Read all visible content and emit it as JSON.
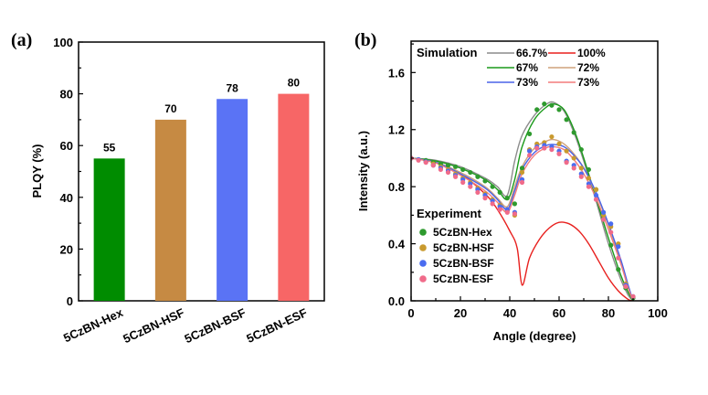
{
  "chart_data": [
    {
      "panel": "(a)",
      "type": "bar",
      "title": "",
      "xlabel": "",
      "ylabel": "PLQY (%)",
      "ylim": [
        0,
        100
      ],
      "yticks": [
        0,
        20,
        40,
        60,
        80,
        100
      ],
      "categories": [
        "5CzBN-Hex",
        "5CzBN-HSF",
        "5CzBN-BSF",
        "5CzBN-ESF"
      ],
      "values": [
        55,
        70,
        78,
        80
      ],
      "data_labels": [
        "55",
        "70",
        "78",
        "80"
      ],
      "colors": [
        "#008c00",
        "#c68a43",
        "#5a73f5",
        "#f76666"
      ],
      "grid": false
    },
    {
      "panel": "(b)",
      "type": "line",
      "title": "",
      "xlabel": "Angle (degree)",
      "ylabel": "Intensity (a.u.)",
      "xlim": [
        0,
        100
      ],
      "ylim": [
        0,
        1.82
      ],
      "xticks": [
        0,
        20,
        40,
        60,
        80,
        100
      ],
      "yticks": [
        0.0,
        0.4,
        0.8,
        1.2,
        1.6
      ],
      "ytick_labels": [
        "0.0",
        "0.4",
        "0.8",
        "1.2",
        "1.6"
      ],
      "grid": false,
      "legend_simulation_title": "Simulation",
      "legend_experiment_title": "Experiment",
      "simulation": [
        {
          "name": "66.7%",
          "color": "#8c8c8c",
          "x": [
            0,
            10,
            20,
            30,
            35,
            39,
            42,
            45,
            50,
            55,
            58,
            62,
            66,
            70,
            75,
            80,
            85,
            88,
            90
          ],
          "y": [
            1.0,
            0.985,
            0.94,
            0.86,
            0.8,
            0.74,
            0.98,
            1.16,
            1.3,
            1.38,
            1.39,
            1.33,
            1.18,
            0.98,
            0.7,
            0.4,
            0.15,
            0.04,
            0.0
          ]
        },
        {
          "name": "100%",
          "color": "#e8201e",
          "x": [
            0,
            10,
            20,
            30,
            35,
            40,
            43,
            45,
            48,
            52,
            56,
            60,
            64,
            68,
            72,
            76,
            80,
            84,
            88,
            90
          ],
          "y": [
            1.0,
            0.97,
            0.89,
            0.75,
            0.64,
            0.49,
            0.37,
            0.11,
            0.3,
            0.43,
            0.51,
            0.55,
            0.54,
            0.49,
            0.4,
            0.28,
            0.16,
            0.07,
            0.01,
            0.0
          ]
        },
        {
          "name": "67%",
          "color": "#1a9a1a",
          "x": [
            0,
            10,
            20,
            30,
            35,
            39,
            42,
            45,
            50,
            55,
            58,
            62,
            66,
            70,
            75,
            80,
            85,
            88,
            90
          ],
          "y": [
            1.0,
            0.98,
            0.93,
            0.85,
            0.78,
            0.71,
            0.85,
            1.08,
            1.27,
            1.36,
            1.38,
            1.34,
            1.2,
            1.0,
            0.72,
            0.44,
            0.18,
            0.06,
            0.0
          ]
        },
        {
          "name": "72%",
          "color": "#cfa27c",
          "x": [
            0,
            10,
            20,
            30,
            35,
            39,
            42,
            45,
            50,
            55,
            58,
            62,
            66,
            70,
            75,
            80,
            85,
            88,
            90
          ],
          "y": [
            1.0,
            0.97,
            0.9,
            0.8,
            0.72,
            0.66,
            0.8,
            0.94,
            1.07,
            1.12,
            1.13,
            1.1,
            1.03,
            0.93,
            0.75,
            0.53,
            0.27,
            0.1,
            0.0
          ]
        },
        {
          "name": "73%",
          "color": "#4a63e8",
          "x": [
            0,
            10,
            20,
            30,
            35,
            39,
            42,
            45,
            50,
            55,
            58,
            62,
            66,
            70,
            75,
            80,
            85,
            88,
            90
          ],
          "y": [
            1.0,
            0.97,
            0.89,
            0.79,
            0.71,
            0.64,
            0.77,
            0.92,
            1.04,
            1.09,
            1.095,
            1.08,
            1.02,
            0.93,
            0.76,
            0.54,
            0.29,
            0.11,
            0.0
          ]
        },
        {
          "name": "73%",
          "color": "#f47c7c",
          "x": [
            0,
            10,
            20,
            30,
            35,
            39,
            42,
            45,
            50,
            55,
            58,
            62,
            66,
            70,
            75,
            80,
            85,
            88,
            90
          ],
          "y": [
            1.0,
            0.965,
            0.88,
            0.77,
            0.69,
            0.62,
            0.74,
            0.89,
            1.02,
            1.075,
            1.08,
            1.06,
            0.99,
            0.89,
            0.72,
            0.5,
            0.26,
            0.09,
            0.0
          ]
        }
      ],
      "experiment": [
        {
          "name": "5CzBN-Hex",
          "color": "#2e9a2e",
          "x": [
            0,
            3,
            6,
            9,
            12,
            15,
            18,
            21,
            24,
            27,
            30,
            33,
            36,
            39,
            42,
            45,
            48,
            51,
            54,
            57,
            60,
            63,
            66,
            69,
            72,
            75,
            78,
            81,
            84,
            87,
            90
          ],
          "y": [
            1.0,
            0.99,
            0.985,
            0.97,
            0.96,
            0.95,
            0.94,
            0.92,
            0.9,
            0.87,
            0.84,
            0.8,
            0.76,
            0.72,
            0.68,
            0.93,
            1.17,
            1.34,
            1.38,
            1.37,
            1.34,
            1.27,
            1.18,
            1.06,
            0.92,
            0.78,
            0.57,
            0.39,
            0.22,
            0.09,
            0.02
          ]
        },
        {
          "name": "5CzBN-HSF",
          "color": "#c99a2e",
          "x": [
            0,
            3,
            6,
            9,
            12,
            15,
            18,
            21,
            24,
            27,
            30,
            33,
            36,
            39,
            42,
            45,
            48,
            51,
            54,
            57,
            60,
            63,
            66,
            69,
            72,
            75,
            78,
            81,
            84,
            87,
            90
          ],
          "y": [
            1.0,
            0.99,
            0.975,
            0.96,
            0.94,
            0.92,
            0.89,
            0.86,
            0.83,
            0.79,
            0.75,
            0.71,
            0.67,
            0.63,
            0.6,
            0.9,
            1.06,
            1.1,
            1.11,
            1.15,
            1.1,
            1.05,
            1.0,
            0.93,
            0.86,
            0.78,
            0.6,
            0.52,
            0.4,
            0.12,
            0.03
          ]
        },
        {
          "name": "5CzBN-BSF",
          "color": "#4a6cf0",
          "x": [
            0,
            3,
            6,
            9,
            12,
            15,
            18,
            21,
            24,
            27,
            30,
            33,
            36,
            39,
            42,
            45,
            48,
            51,
            54,
            57,
            60,
            63,
            66,
            69,
            72,
            75,
            78,
            81,
            84,
            87,
            90
          ],
          "y": [
            1.0,
            0.99,
            0.975,
            0.95,
            0.93,
            0.91,
            0.88,
            0.85,
            0.82,
            0.78,
            0.74,
            0.7,
            0.66,
            0.64,
            0.62,
            0.85,
            1.05,
            1.08,
            1.09,
            1.08,
            1.05,
            0.98,
            0.95,
            0.89,
            0.82,
            0.74,
            0.62,
            0.54,
            0.38,
            0.11,
            0.03
          ]
        },
        {
          "name": "5CzBN-ESF",
          "color": "#f06b8a",
          "x": [
            0,
            3,
            6,
            9,
            12,
            15,
            18,
            21,
            24,
            27,
            30,
            33,
            36,
            39,
            42,
            45,
            48,
            51,
            54,
            57,
            60,
            63,
            66,
            69,
            72,
            75,
            78,
            81,
            84,
            87,
            90
          ],
          "y": [
            1.0,
            0.985,
            0.97,
            0.95,
            0.92,
            0.9,
            0.87,
            0.83,
            0.8,
            0.76,
            0.72,
            0.68,
            0.64,
            0.62,
            0.61,
            0.83,
            1.02,
            1.07,
            1.07,
            1.06,
            1.03,
            0.97,
            0.93,
            0.87,
            0.8,
            0.71,
            0.57,
            0.48,
            0.3,
            0.1,
            0.03
          ]
        }
      ]
    }
  ]
}
